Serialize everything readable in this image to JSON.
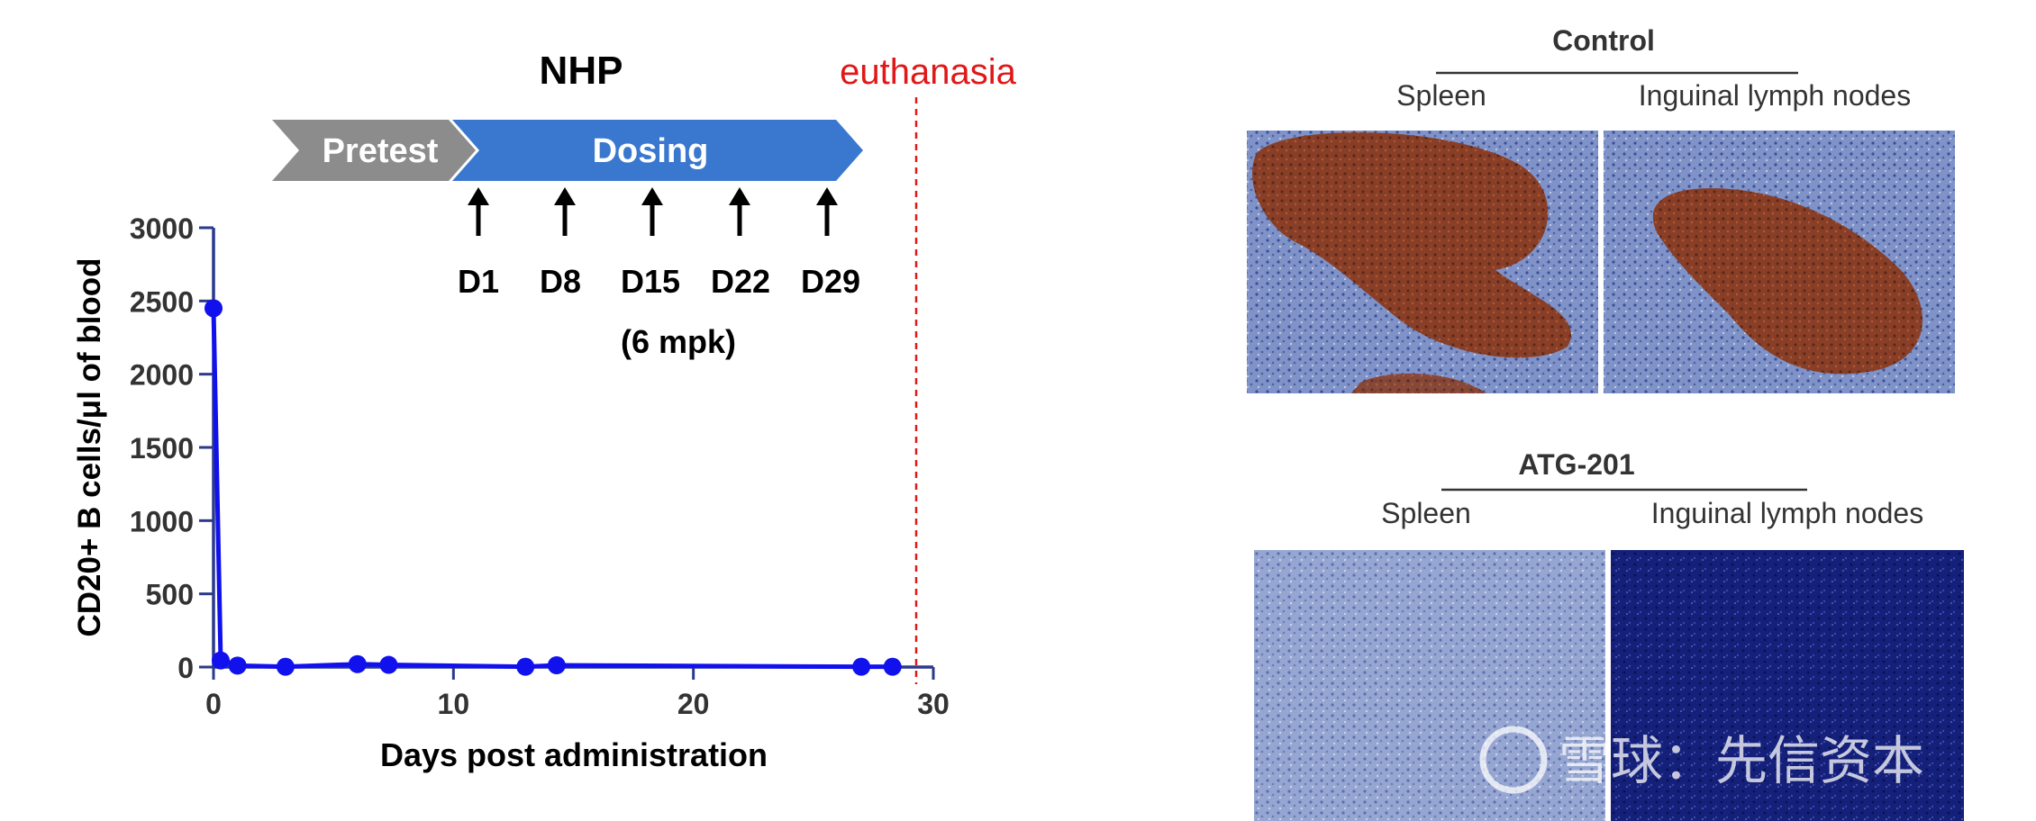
{
  "header": {
    "title": "NHP",
    "euthanasia_label": "euthanasia",
    "pretest_label": "Pretest",
    "dosing_label": "Dosing",
    "dose_days": [
      "D1",
      "D8",
      "D15",
      "D22",
      "D29"
    ],
    "dose_note": "(6 mpk)"
  },
  "colors": {
    "series": "#1111ee",
    "axis": "#2b3a8c",
    "pretest": "#8c8c8c",
    "dosing": "#3a78d0",
    "euthanasia": "#e01818"
  },
  "chart_data": {
    "type": "line",
    "title": "",
    "xlabel": "Days post administration",
    "ylabel": "CD20+ B cells/μl of blood",
    "xlim": [
      0,
      30
    ],
    "ylim": [
      0,
      3000
    ],
    "xticks": [
      0,
      10,
      20,
      30
    ],
    "yticks": [
      0,
      500,
      1000,
      1500,
      2000,
      2500,
      3000
    ],
    "grid": false,
    "legend": "none",
    "series": [
      {
        "x": [
          0,
          0.3,
          1,
          3,
          6,
          7.3,
          13,
          14.3,
          27,
          28.3
        ],
        "y": [
          2450,
          45,
          10,
          2,
          20,
          15,
          2,
          12,
          2,
          2
        ]
      }
    ],
    "annotations": {
      "euthanasia_day": 29.3,
      "dose_days": [
        1,
        8,
        15,
        22,
        29
      ]
    }
  },
  "histology": {
    "control": {
      "title": "Control",
      "panels": [
        "Spleen",
        "Inguinal lymph nodes"
      ]
    },
    "treated": {
      "title": "ATG-201",
      "panels": [
        "Spleen",
        "Inguinal lymph nodes"
      ]
    }
  },
  "watermark": "雪球：先信资本"
}
